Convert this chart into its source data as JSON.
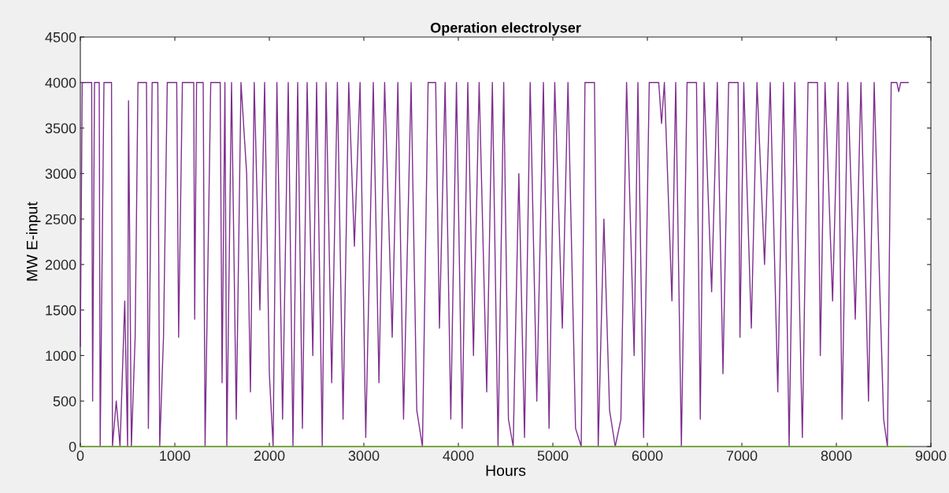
{
  "chart_data": {
    "type": "line",
    "title": "Operation electrolyser",
    "xlabel": "Hours",
    "ylabel": "MW E-input",
    "xlim": [
      0,
      9000
    ],
    "xticks": [
      0,
      1000,
      2000,
      3000,
      4000,
      5000,
      6000,
      7000,
      8000,
      9000
    ],
    "ylim": [
      0,
      4500
    ],
    "yticks": [
      0,
      500,
      1000,
      1500,
      2000,
      2500,
      3000,
      3500,
      4000,
      4500
    ],
    "grid": false,
    "legend": false,
    "series": [
      {
        "color": "#7e2f8e",
        "x": [
          0,
          20,
          120,
          130,
          150,
          200,
          210,
          250,
          330,
          340,
          380,
          420,
          470,
          500,
          510,
          540,
          580,
          610,
          700,
          720,
          760,
          820,
          840,
          880,
          920,
          1020,
          1040,
          1080,
          1200,
          1210,
          1230,
          1300,
          1320,
          1380,
          1480,
          1500,
          1530,
          1550,
          1600,
          1650,
          1700,
          1760,
          1800,
          1840,
          1900,
          1950,
          2000,
          2040,
          2080,
          2140,
          2200,
          2250,
          2300,
          2350,
          2400,
          2460,
          2500,
          2560,
          2600,
          2660,
          2720,
          2780,
          2840,
          2900,
          2960,
          3020,
          3100,
          3160,
          3220,
          3300,
          3360,
          3420,
          3500,
          3560,
          3620,
          3680,
          3760,
          3800,
          3860,
          3920,
          3980,
          4040,
          4100,
          4160,
          4220,
          4300,
          4360,
          4420,
          4480,
          4530,
          4580,
          4640,
          4700,
          4760,
          4830,
          4900,
          4960,
          5020,
          5100,
          5160,
          5240,
          5300,
          5340,
          5440,
          5480,
          5540,
          5600,
          5660,
          5720,
          5780,
          5860,
          5900,
          5960,
          6020,
          6120,
          6150,
          6180,
          6260,
          6300,
          6360,
          6420,
          6520,
          6560,
          6600,
          6680,
          6740,
          6800,
          6860,
          6960,
          6980,
          7020,
          7100,
          7160,
          7240,
          7300,
          7380,
          7440,
          7500,
          7560,
          7640,
          7700,
          7800,
          7830,
          7880,
          7960,
          8020,
          8060,
          8120,
          8200,
          8260,
          8340,
          8400,
          8460,
          8500,
          8540,
          8580,
          8640,
          8660,
          8680,
          8760
        ],
        "values": [
          1100,
          4000,
          4000,
          500,
          4000,
          4000,
          0,
          4000,
          4000,
          0,
          500,
          0,
          1600,
          0,
          3800,
          0,
          1200,
          4000,
          4000,
          200,
          4000,
          4000,
          0,
          1200,
          4000,
          4000,
          1200,
          4000,
          4000,
          1400,
          4000,
          4000,
          0,
          4000,
          4000,
          700,
          4000,
          0,
          4000,
          300,
          4000,
          3000,
          600,
          4000,
          1500,
          4000,
          800,
          0,
          4000,
          300,
          4000,
          0,
          4000,
          200,
          4000,
          1000,
          4000,
          0,
          4000,
          700,
          4000,
          300,
          4000,
          2200,
          4000,
          100,
          4000,
          700,
          4000,
          1200,
          4000,
          300,
          4000,
          400,
          0,
          4000,
          4000,
          1300,
          4000,
          300,
          4000,
          200,
          4000,
          1000,
          4000,
          600,
          4000,
          0,
          4000,
          300,
          0,
          3000,
          100,
          4000,
          500,
          4000,
          200,
          4000,
          1300,
          4000,
          200,
          0,
          4000,
          4000,
          0,
          2500,
          400,
          0,
          300,
          4000,
          1000,
          4000,
          100,
          4000,
          4000,
          3550,
          4000,
          1600,
          4000,
          0,
          4000,
          4000,
          300,
          4000,
          1700,
          4000,
          800,
          4000,
          4000,
          1200,
          4000,
          1300,
          4000,
          2000,
          4000,
          600,
          4000,
          0,
          4000,
          100,
          4000,
          4000,
          1000,
          4000,
          1600,
          4000,
          300,
          4000,
          1400,
          4000,
          500,
          4000,
          1700,
          300,
          0,
          4000,
          4000,
          3900,
          4000,
          4000
        ]
      },
      {
        "color": "#77ac30",
        "x": [
          0,
          8760
        ],
        "values": [
          0,
          0
        ]
      }
    ]
  }
}
